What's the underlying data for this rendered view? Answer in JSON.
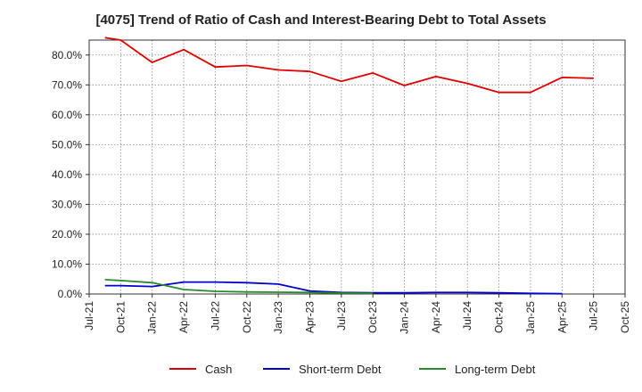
{
  "chart_data": {
    "type": "line",
    "title": "[4075]  Trend of Ratio of Cash and Interest-Bearing Debt to Total Assets",
    "xlabel": "",
    "ylabel": "",
    "ylim": [
      0,
      85
    ],
    "y_ticks": [
      "0.0%",
      "10.0%",
      "20.0%",
      "30.0%",
      "40.0%",
      "50.0%",
      "60.0%",
      "70.0%",
      "80.0%"
    ],
    "x_ticks": [
      "Jul-21",
      "Oct-21",
      "Jan-22",
      "Apr-22",
      "Jul-22",
      "Oct-22",
      "Jan-23",
      "Apr-23",
      "Jul-23",
      "Oct-23",
      "Jan-24",
      "Apr-24",
      "Jul-24",
      "Oct-24",
      "Jan-25",
      "Apr-25",
      "Jul-25",
      "Oct-25"
    ],
    "grid": true,
    "legend_position": "bottom",
    "series": [
      {
        "name": "Cash",
        "color": "#e00000",
        "points": [
          [
            0.5,
            85.8
          ],
          [
            1,
            85.0
          ],
          [
            2,
            77.5
          ],
          [
            3,
            81.8
          ],
          [
            4,
            76.0
          ],
          [
            5,
            76.5
          ],
          [
            6,
            75.0
          ],
          [
            7,
            74.5
          ],
          [
            8,
            71.2
          ],
          [
            9,
            74.0
          ],
          [
            10,
            69.8
          ],
          [
            11,
            72.8
          ],
          [
            12,
            70.5
          ],
          [
            13,
            67.5
          ],
          [
            14,
            67.5
          ],
          [
            15,
            72.5
          ],
          [
            16,
            72.2
          ]
        ]
      },
      {
        "name": "Short-term Debt",
        "color": "#0000cc",
        "points": [
          [
            0.5,
            2.8
          ],
          [
            1,
            2.8
          ],
          [
            2,
            2.5
          ],
          [
            3,
            4.0
          ],
          [
            4,
            4.0
          ],
          [
            5,
            3.8
          ],
          [
            6,
            3.3
          ],
          [
            7,
            1.0
          ],
          [
            8,
            0.5
          ],
          [
            9,
            0.4
          ],
          [
            10,
            0.4
          ],
          [
            11,
            0.5
          ],
          [
            12,
            0.5
          ],
          [
            13,
            0.4
          ],
          [
            14,
            0.2
          ],
          [
            15,
            0.1
          ]
        ]
      },
      {
        "name": "Long-term Debt",
        "color": "#2a8a2a",
        "points": [
          [
            0.5,
            4.8
          ],
          [
            1,
            4.5
          ],
          [
            2,
            3.8
          ],
          [
            3,
            1.5
          ],
          [
            4,
            0.9
          ],
          [
            5,
            0.7
          ],
          [
            6,
            0.6
          ],
          [
            7,
            0.5
          ],
          [
            8,
            0.3
          ],
          [
            9,
            0.2
          ]
        ]
      }
    ]
  }
}
